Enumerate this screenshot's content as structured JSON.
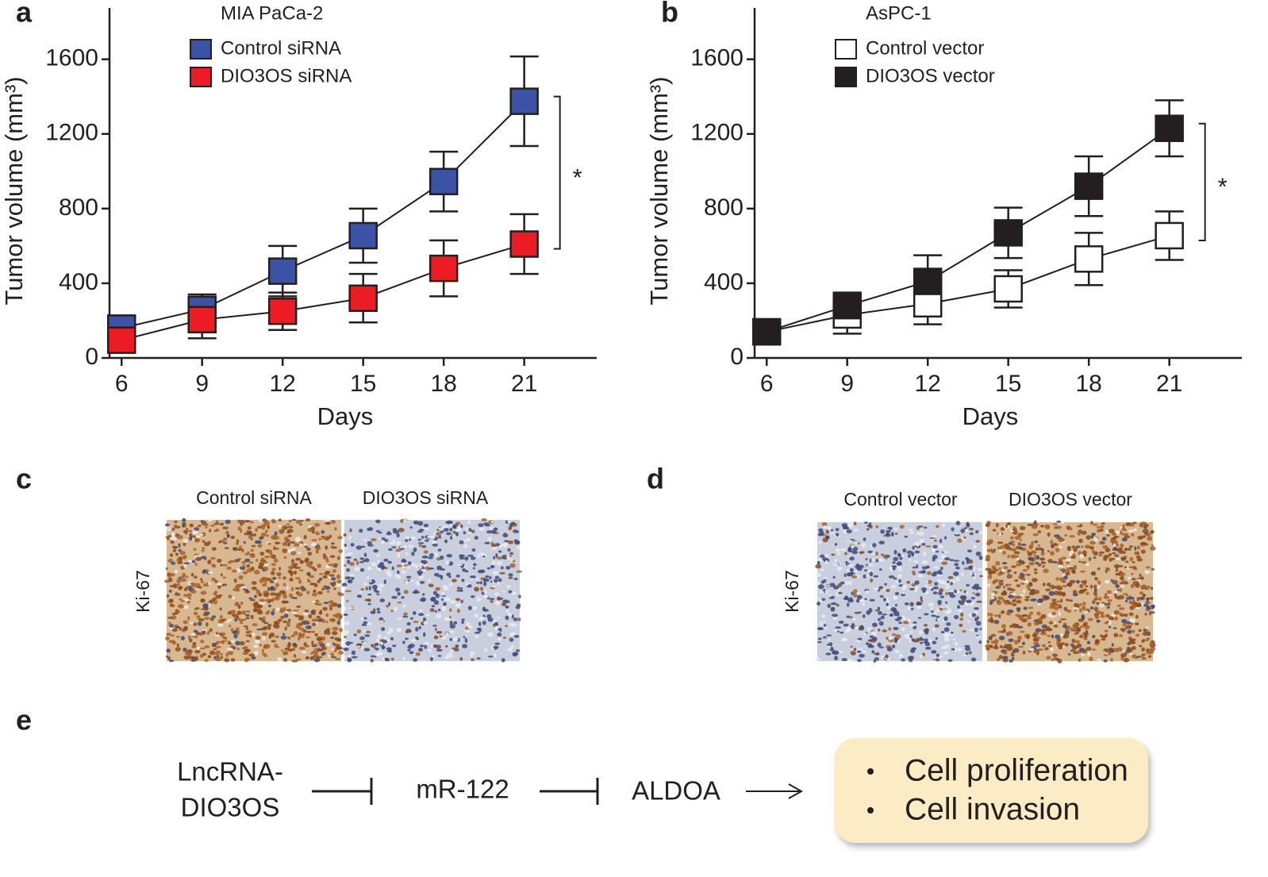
{
  "chart_data": [
    {
      "type": "line",
      "panel_label": "a",
      "title": "MIA PaCa-2",
      "x": [
        6,
        9,
        12,
        15,
        18,
        21
      ],
      "xlim": [
        5.55,
        23.7
      ],
      "xticks": [
        6,
        9,
        12,
        15,
        18,
        21
      ],
      "ylim": [
        0,
        1875
      ],
      "yticks": [
        0,
        400,
        800,
        1200,
        1600
      ],
      "xlabel": "Days",
      "ylabel": "Tumor volume (mm³)",
      "annotation": "*",
      "series": [
        {
          "name": "Control siRNA",
          "color": "#3a53a4",
          "values": [
            160,
            260,
            465,
            655,
            945,
            1375
          ],
          "errors": [
            50,
            80,
            135,
            145,
            160,
            240
          ]
        },
        {
          "name": "DIO3OS siRNA",
          "color": "#ed1c24",
          "values": [
            95,
            205,
            250,
            320,
            480,
            610
          ],
          "errors": [
            40,
            100,
            100,
            130,
            150,
            160
          ]
        }
      ]
    },
    {
      "type": "line",
      "panel_label": "b",
      "title": "AsPC-1",
      "x": [
        6,
        9,
        12,
        15,
        18,
        21
      ],
      "xlim": [
        5.55,
        23.7
      ],
      "xticks": [
        6,
        9,
        12,
        15,
        18,
        21
      ],
      "ylim": [
        0,
        1875
      ],
      "yticks": [
        0,
        400,
        800,
        1200,
        1600
      ],
      "xlabel": "Days",
      "ylabel": "Tumor volume (mm³)",
      "annotation": "*",
      "series": [
        {
          "name": "Control vector",
          "color": "#ffffff",
          "values": [
            140,
            230,
            290,
            370,
            530,
            655
          ],
          "errors": [
            60,
            100,
            110,
            100,
            140,
            130
          ]
        },
        {
          "name": "DIO3OS vector",
          "color": "#231f20",
          "values": [
            140,
            280,
            410,
            670,
            920,
            1230
          ],
          "errors": [
            60,
            70,
            140,
            135,
            160,
            150
          ]
        }
      ]
    }
  ],
  "images": [
    {
      "panel_label": "c",
      "row_label": "Ki-67",
      "columns": [
        "Control siRNA",
        "DIO3OS siRNA"
      ]
    },
    {
      "panel_label": "d",
      "row_label": "Ki-67",
      "columns": [
        "Control vector",
        "DIO3OS vector"
      ]
    }
  ],
  "pathway": {
    "panel_label": "e",
    "lncrna": [
      "LncRNA-",
      "DIO3OS"
    ],
    "mirna": "mR-122",
    "target": "ALDOA",
    "outcomes": [
      "Cell proliferation",
      "Cell invasion"
    ]
  }
}
